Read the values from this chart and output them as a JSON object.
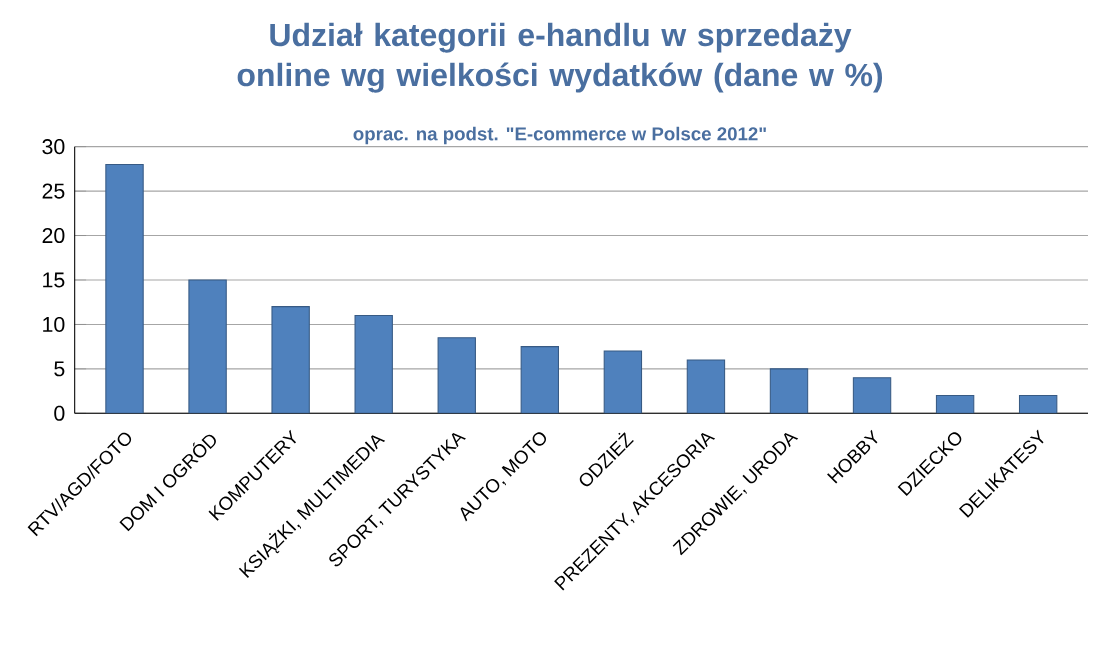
{
  "chart_data": {
    "type": "bar",
    "title": "Udział kategorii e-handlu w sprzedaży online wg wielkości wydatków (dane w %)",
    "subtitle": "oprac. na podst. \"E-commerce w Polsce 2012\"",
    "categories": [
      "RTV/AGD/FOTO",
      "DOM I OGRÓD",
      "KOMPUTERY",
      "KSIĄŻKI, MULTIMEDIA",
      "SPORT, TURYSTYKA",
      "AUTO, MOTO",
      "ODZIEŻ",
      "PREZENTY, AKCESORIA",
      "ZDROWIE, URODA",
      "HOBBY",
      "DZIECKO",
      "DELIKATESY"
    ],
    "values": [
      28,
      15,
      12,
      11,
      8.5,
      7.5,
      7,
      6,
      5,
      4,
      2,
      2
    ],
    "color": "#4f81bd",
    "ylim": [
      0,
      30
    ],
    "yticks": [
      0,
      5,
      10,
      15,
      20,
      25,
      30
    ],
    "grid": "y"
  }
}
